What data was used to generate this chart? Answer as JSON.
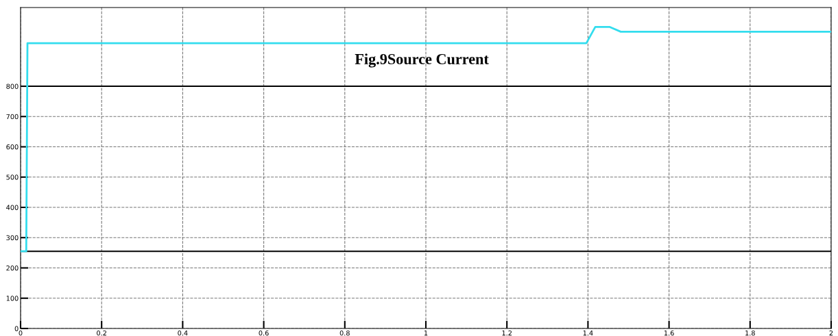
{
  "chart_data": {
    "type": "line",
    "title": "Fig.9Source Current",
    "x": [
      0,
      0.014,
      0.017,
      0.2,
      0.5,
      0.8,
      1.1,
      1.396,
      1.418,
      1.453,
      1.481,
      2
    ],
    "series": [
      {
        "color": "#33ddee",
        "values": [
          255,
          255,
          942,
          942,
          942,
          942,
          942,
          942,
          996,
          996,
          980,
          980
        ]
      }
    ],
    "xlim": [
      0,
      2
    ],
    "xticks": [
      0,
      0.2,
      0.4,
      0.6,
      0.8,
      1,
      1.2,
      1.4,
      1.6,
      1.8,
      2
    ],
    "ylim": [
      0,
      1060
    ],
    "yticks": [
      0,
      100,
      200,
      300,
      400,
      500,
      600,
      700,
      800
    ],
    "ref_lines": [
      {
        "axis": "y",
        "value": 800,
        "color": "#000000",
        "line_style": "solid"
      },
      {
        "axis": "y",
        "value": 255,
        "color": "#000000",
        "line_style": "solid"
      }
    ],
    "grid": true,
    "line_style": "solid",
    "marker": "none",
    "legend": false
  }
}
